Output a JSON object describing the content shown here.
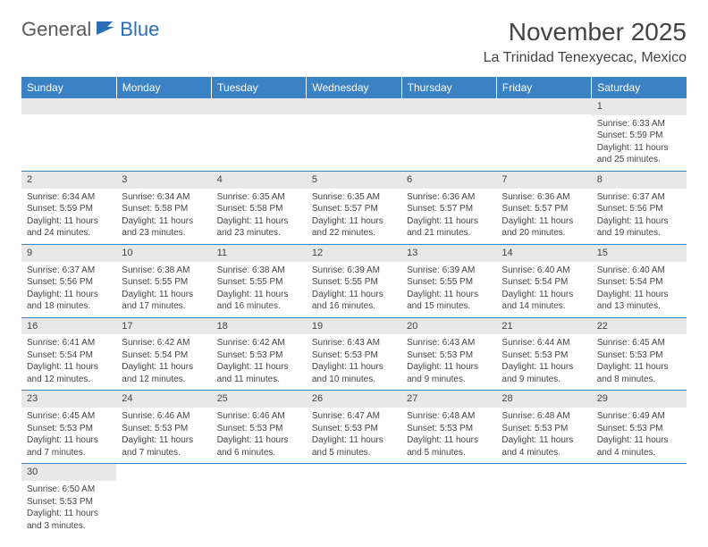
{
  "logo": {
    "part1": "General",
    "part2": "Blue"
  },
  "title": "November 2025",
  "location": "La Trinidad Tenexyecac, Mexico",
  "colors": {
    "header_bg": "#3b82c4",
    "header_text": "#ffffff",
    "daynum_bg": "#e8e8e8",
    "rule": "#3b82c4",
    "text": "#444444",
    "logo_gray": "#5a5a5a",
    "logo_blue": "#2a6db8"
  },
  "day_headers": [
    "Sunday",
    "Monday",
    "Tuesday",
    "Wednesday",
    "Thursday",
    "Friday",
    "Saturday"
  ],
  "weeks": [
    [
      null,
      null,
      null,
      null,
      null,
      null,
      {
        "n": "1",
        "sr": "Sunrise: 6:33 AM",
        "ss": "Sunset: 5:59 PM",
        "d1": "Daylight: 11 hours",
        "d2": "and 25 minutes."
      }
    ],
    [
      {
        "n": "2",
        "sr": "Sunrise: 6:34 AM",
        "ss": "Sunset: 5:59 PM",
        "d1": "Daylight: 11 hours",
        "d2": "and 24 minutes."
      },
      {
        "n": "3",
        "sr": "Sunrise: 6:34 AM",
        "ss": "Sunset: 5:58 PM",
        "d1": "Daylight: 11 hours",
        "d2": "and 23 minutes."
      },
      {
        "n": "4",
        "sr": "Sunrise: 6:35 AM",
        "ss": "Sunset: 5:58 PM",
        "d1": "Daylight: 11 hours",
        "d2": "and 23 minutes."
      },
      {
        "n": "5",
        "sr": "Sunrise: 6:35 AM",
        "ss": "Sunset: 5:57 PM",
        "d1": "Daylight: 11 hours",
        "d2": "and 22 minutes."
      },
      {
        "n": "6",
        "sr": "Sunrise: 6:36 AM",
        "ss": "Sunset: 5:57 PM",
        "d1": "Daylight: 11 hours",
        "d2": "and 21 minutes."
      },
      {
        "n": "7",
        "sr": "Sunrise: 6:36 AM",
        "ss": "Sunset: 5:57 PM",
        "d1": "Daylight: 11 hours",
        "d2": "and 20 minutes."
      },
      {
        "n": "8",
        "sr": "Sunrise: 6:37 AM",
        "ss": "Sunset: 5:56 PM",
        "d1": "Daylight: 11 hours",
        "d2": "and 19 minutes."
      }
    ],
    [
      {
        "n": "9",
        "sr": "Sunrise: 6:37 AM",
        "ss": "Sunset: 5:56 PM",
        "d1": "Daylight: 11 hours",
        "d2": "and 18 minutes."
      },
      {
        "n": "10",
        "sr": "Sunrise: 6:38 AM",
        "ss": "Sunset: 5:55 PM",
        "d1": "Daylight: 11 hours",
        "d2": "and 17 minutes."
      },
      {
        "n": "11",
        "sr": "Sunrise: 6:38 AM",
        "ss": "Sunset: 5:55 PM",
        "d1": "Daylight: 11 hours",
        "d2": "and 16 minutes."
      },
      {
        "n": "12",
        "sr": "Sunrise: 6:39 AM",
        "ss": "Sunset: 5:55 PM",
        "d1": "Daylight: 11 hours",
        "d2": "and 16 minutes."
      },
      {
        "n": "13",
        "sr": "Sunrise: 6:39 AM",
        "ss": "Sunset: 5:55 PM",
        "d1": "Daylight: 11 hours",
        "d2": "and 15 minutes."
      },
      {
        "n": "14",
        "sr": "Sunrise: 6:40 AM",
        "ss": "Sunset: 5:54 PM",
        "d1": "Daylight: 11 hours",
        "d2": "and 14 minutes."
      },
      {
        "n": "15",
        "sr": "Sunrise: 6:40 AM",
        "ss": "Sunset: 5:54 PM",
        "d1": "Daylight: 11 hours",
        "d2": "and 13 minutes."
      }
    ],
    [
      {
        "n": "16",
        "sr": "Sunrise: 6:41 AM",
        "ss": "Sunset: 5:54 PM",
        "d1": "Daylight: 11 hours",
        "d2": "and 12 minutes."
      },
      {
        "n": "17",
        "sr": "Sunrise: 6:42 AM",
        "ss": "Sunset: 5:54 PM",
        "d1": "Daylight: 11 hours",
        "d2": "and 12 minutes."
      },
      {
        "n": "18",
        "sr": "Sunrise: 6:42 AM",
        "ss": "Sunset: 5:53 PM",
        "d1": "Daylight: 11 hours",
        "d2": "and 11 minutes."
      },
      {
        "n": "19",
        "sr": "Sunrise: 6:43 AM",
        "ss": "Sunset: 5:53 PM",
        "d1": "Daylight: 11 hours",
        "d2": "and 10 minutes."
      },
      {
        "n": "20",
        "sr": "Sunrise: 6:43 AM",
        "ss": "Sunset: 5:53 PM",
        "d1": "Daylight: 11 hours",
        "d2": "and 9 minutes."
      },
      {
        "n": "21",
        "sr": "Sunrise: 6:44 AM",
        "ss": "Sunset: 5:53 PM",
        "d1": "Daylight: 11 hours",
        "d2": "and 9 minutes."
      },
      {
        "n": "22",
        "sr": "Sunrise: 6:45 AM",
        "ss": "Sunset: 5:53 PM",
        "d1": "Daylight: 11 hours",
        "d2": "and 8 minutes."
      }
    ],
    [
      {
        "n": "23",
        "sr": "Sunrise: 6:45 AM",
        "ss": "Sunset: 5:53 PM",
        "d1": "Daylight: 11 hours",
        "d2": "and 7 minutes."
      },
      {
        "n": "24",
        "sr": "Sunrise: 6:46 AM",
        "ss": "Sunset: 5:53 PM",
        "d1": "Daylight: 11 hours",
        "d2": "and 7 minutes."
      },
      {
        "n": "25",
        "sr": "Sunrise: 6:46 AM",
        "ss": "Sunset: 5:53 PM",
        "d1": "Daylight: 11 hours",
        "d2": "and 6 minutes."
      },
      {
        "n": "26",
        "sr": "Sunrise: 6:47 AM",
        "ss": "Sunset: 5:53 PM",
        "d1": "Daylight: 11 hours",
        "d2": "and 5 minutes."
      },
      {
        "n": "27",
        "sr": "Sunrise: 6:48 AM",
        "ss": "Sunset: 5:53 PM",
        "d1": "Daylight: 11 hours",
        "d2": "and 5 minutes."
      },
      {
        "n": "28",
        "sr": "Sunrise: 6:48 AM",
        "ss": "Sunset: 5:53 PM",
        "d1": "Daylight: 11 hours",
        "d2": "and 4 minutes."
      },
      {
        "n": "29",
        "sr": "Sunrise: 6:49 AM",
        "ss": "Sunset: 5:53 PM",
        "d1": "Daylight: 11 hours",
        "d2": "and 4 minutes."
      }
    ],
    [
      {
        "n": "30",
        "sr": "Sunrise: 6:50 AM",
        "ss": "Sunset: 5:53 PM",
        "d1": "Daylight: 11 hours",
        "d2": "and 3 minutes."
      },
      null,
      null,
      null,
      null,
      null,
      null
    ]
  ]
}
